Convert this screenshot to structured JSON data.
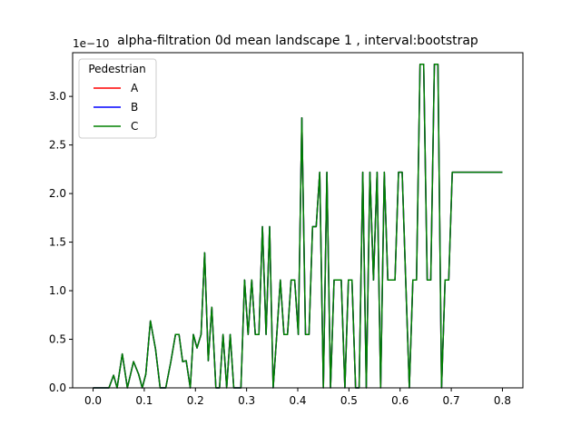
{
  "chart_data": {
    "type": "line",
    "title": "alpha-filtration 0d mean landscape 1 , interval:bootstrap",
    "xlabel": "",
    "ylabel": "",
    "y_scale_label": "1e−10",
    "xlim": [
      -0.04,
      0.84
    ],
    "ylim": [
      0,
      3.45
    ],
    "x_ticks": [
      "0.0",
      "0.1",
      "0.2",
      "0.3",
      "0.4",
      "0.5",
      "0.6",
      "0.7",
      "0.8"
    ],
    "y_ticks": [
      "0.0",
      "0.5",
      "1.0",
      "1.5",
      "2.0",
      "2.5",
      "3.0"
    ],
    "legend": {
      "title": "Pedestrian",
      "position": "upper left"
    },
    "series": [
      {
        "name": "A",
        "color": "#ff0000"
      },
      {
        "name": "B",
        "color": "#0000ff"
      },
      {
        "name": "C",
        "color": "#008000"
      }
    ],
    "x": [
      0.0,
      0.031,
      0.04,
      0.047,
      0.057,
      0.067,
      0.079,
      0.089,
      0.096,
      0.103,
      0.112,
      0.122,
      0.131,
      0.142,
      0.152,
      0.161,
      0.168,
      0.175,
      0.182,
      0.19,
      0.196,
      0.203,
      0.211,
      0.218,
      0.225,
      0.232,
      0.24,
      0.247,
      0.254,
      0.261,
      0.268,
      0.275,
      0.282,
      0.289,
      0.296,
      0.303,
      0.31,
      0.317,
      0.324,
      0.331,
      0.338,
      0.345,
      0.352,
      0.359,
      0.366,
      0.373,
      0.38,
      0.387,
      0.394,
      0.401,
      0.408,
      0.415,
      0.422,
      0.429,
      0.436,
      0.443,
      0.45,
      0.457,
      0.464,
      0.471,
      0.478,
      0.485,
      0.492,
      0.499,
      0.506,
      0.513,
      0.52,
      0.527,
      0.534,
      0.541,
      0.548,
      0.555,
      0.562,
      0.569,
      0.576,
      0.583,
      0.59,
      0.597,
      0.604,
      0.611,
      0.618,
      0.625,
      0.632,
      0.639,
      0.646,
      0.653,
      0.66,
      0.667,
      0.674,
      0.681,
      0.688,
      0.695,
      0.702,
      0.709,
      0.716,
      0.723,
      0.73,
      0.737,
      0.744,
      0.751,
      0.758,
      0.765,
      0.772,
      0.779,
      0.786,
      0.793,
      0.8
    ],
    "y": [
      0.0,
      0.0,
      0.13,
      0.0,
      0.35,
      0.0,
      0.27,
      0.14,
      0.0,
      0.14,
      0.69,
      0.4,
      0.0,
      0.0,
      0.27,
      0.55,
      0.55,
      0.27,
      0.28,
      0.0,
      0.55,
      0.41,
      0.55,
      1.39,
      0.28,
      0.83,
      0.0,
      0.0,
      0.55,
      0.0,
      0.55,
      0.0,
      0.0,
      0.0,
      1.11,
      0.55,
      1.11,
      0.55,
      0.55,
      1.66,
      0.55,
      1.66,
      0.0,
      0.55,
      1.11,
      0.55,
      0.55,
      1.11,
      1.11,
      0.55,
      2.78,
      0.55,
      0.55,
      1.66,
      1.66,
      2.22,
      0.0,
      2.22,
      0.0,
      1.11,
      1.11,
      1.11,
      0.0,
      1.11,
      1.11,
      0.0,
      0.0,
      2.22,
      0.0,
      2.22,
      1.11,
      2.22,
      0.0,
      2.22,
      1.11,
      1.11,
      1.11,
      2.22,
      2.22,
      1.11,
      0.0,
      1.11,
      1.11,
      3.33,
      3.33,
      1.11,
      1.11,
      3.33,
      3.33,
      0.0,
      1.11,
      1.11,
      2.22,
      2.22,
      2.22,
      2.22,
      2.22,
      2.22,
      2.22,
      2.22,
      2.22,
      2.22,
      2.22,
      2.22,
      2.22,
      2.22,
      2.22
    ]
  }
}
